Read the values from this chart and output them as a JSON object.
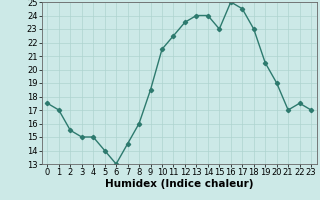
{
  "title": "",
  "x": [
    0,
    1,
    2,
    3,
    4,
    5,
    6,
    7,
    8,
    9,
    10,
    11,
    12,
    13,
    14,
    15,
    16,
    17,
    18,
    19,
    20,
    21,
    22,
    23
  ],
  "y": [
    17.5,
    17.0,
    15.5,
    15.0,
    15.0,
    14.0,
    13.0,
    14.5,
    16.0,
    18.5,
    21.5,
    22.5,
    23.5,
    24.0,
    24.0,
    23.0,
    25.0,
    24.5,
    23.0,
    20.5,
    19.0,
    17.0,
    17.5,
    17.0
  ],
  "xlabel": "Humidex (Indice chaleur)",
  "ylim": [
    13,
    25
  ],
  "xlim_min": -0.5,
  "xlim_max": 23.5,
  "yticks": [
    13,
    14,
    15,
    16,
    17,
    18,
    19,
    20,
    21,
    22,
    23,
    24,
    25
  ],
  "xticks": [
    0,
    1,
    2,
    3,
    4,
    5,
    6,
    7,
    8,
    9,
    10,
    11,
    12,
    13,
    14,
    15,
    16,
    17,
    18,
    19,
    20,
    21,
    22,
    23
  ],
  "line_color": "#2d7a6e",
  "marker": "D",
  "marker_size": 2.2,
  "bg_color": "#cce9e7",
  "grid_color": "#aed4d0",
  "xlabel_fontsize": 7.5,
  "tick_fontsize": 6.0,
  "line_width": 1.0
}
